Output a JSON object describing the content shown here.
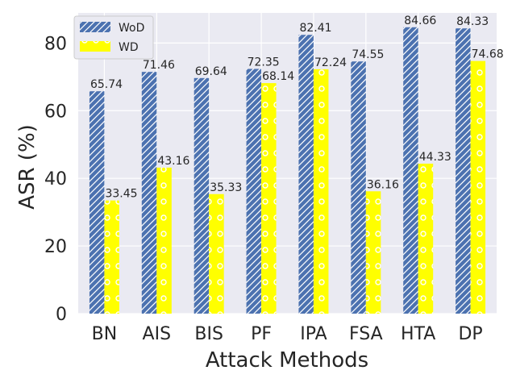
{
  "chart_data": {
    "type": "bar",
    "categories": [
      "BN",
      "AIS",
      "BIS",
      "PF",
      "IPA",
      "FSA",
      "HTA",
      "DP"
    ],
    "series": [
      {
        "name": "WoD",
        "values": [
          65.74,
          71.46,
          69.64,
          72.35,
          82.41,
          74.55,
          84.66,
          84.33
        ],
        "color": "#4c72b0",
        "pattern": "diagonal-hatch"
      },
      {
        "name": "WD",
        "values": [
          33.45,
          43.16,
          35.33,
          68.14,
          72.24,
          36.16,
          44.33,
          74.68
        ],
        "color": "#ffff00",
        "pattern": "circles"
      }
    ],
    "data_labels": {
      "WoD": [
        "65.74",
        "71.46",
        "69.64",
        "72.35",
        "82.41",
        "74.55",
        "84.66",
        "84.33"
      ],
      "WD": [
        "33.45",
        "43.16",
        "35.33",
        "68.14",
        "72.24",
        "36.16",
        "44.33",
        "74.68"
      ]
    },
    "xlabel": "Attack Methods",
    "ylabel": "ASR (%)",
    "ylim": [
      0,
      88.9
    ],
    "yticks": [
      0,
      20,
      40,
      60,
      80
    ],
    "ytick_labels": [
      "0",
      "20",
      "40",
      "60",
      "80"
    ],
    "grid": true,
    "legend_position": "top-left",
    "background_color": "#eaeaf2",
    "grid_color": "#ffffff"
  }
}
